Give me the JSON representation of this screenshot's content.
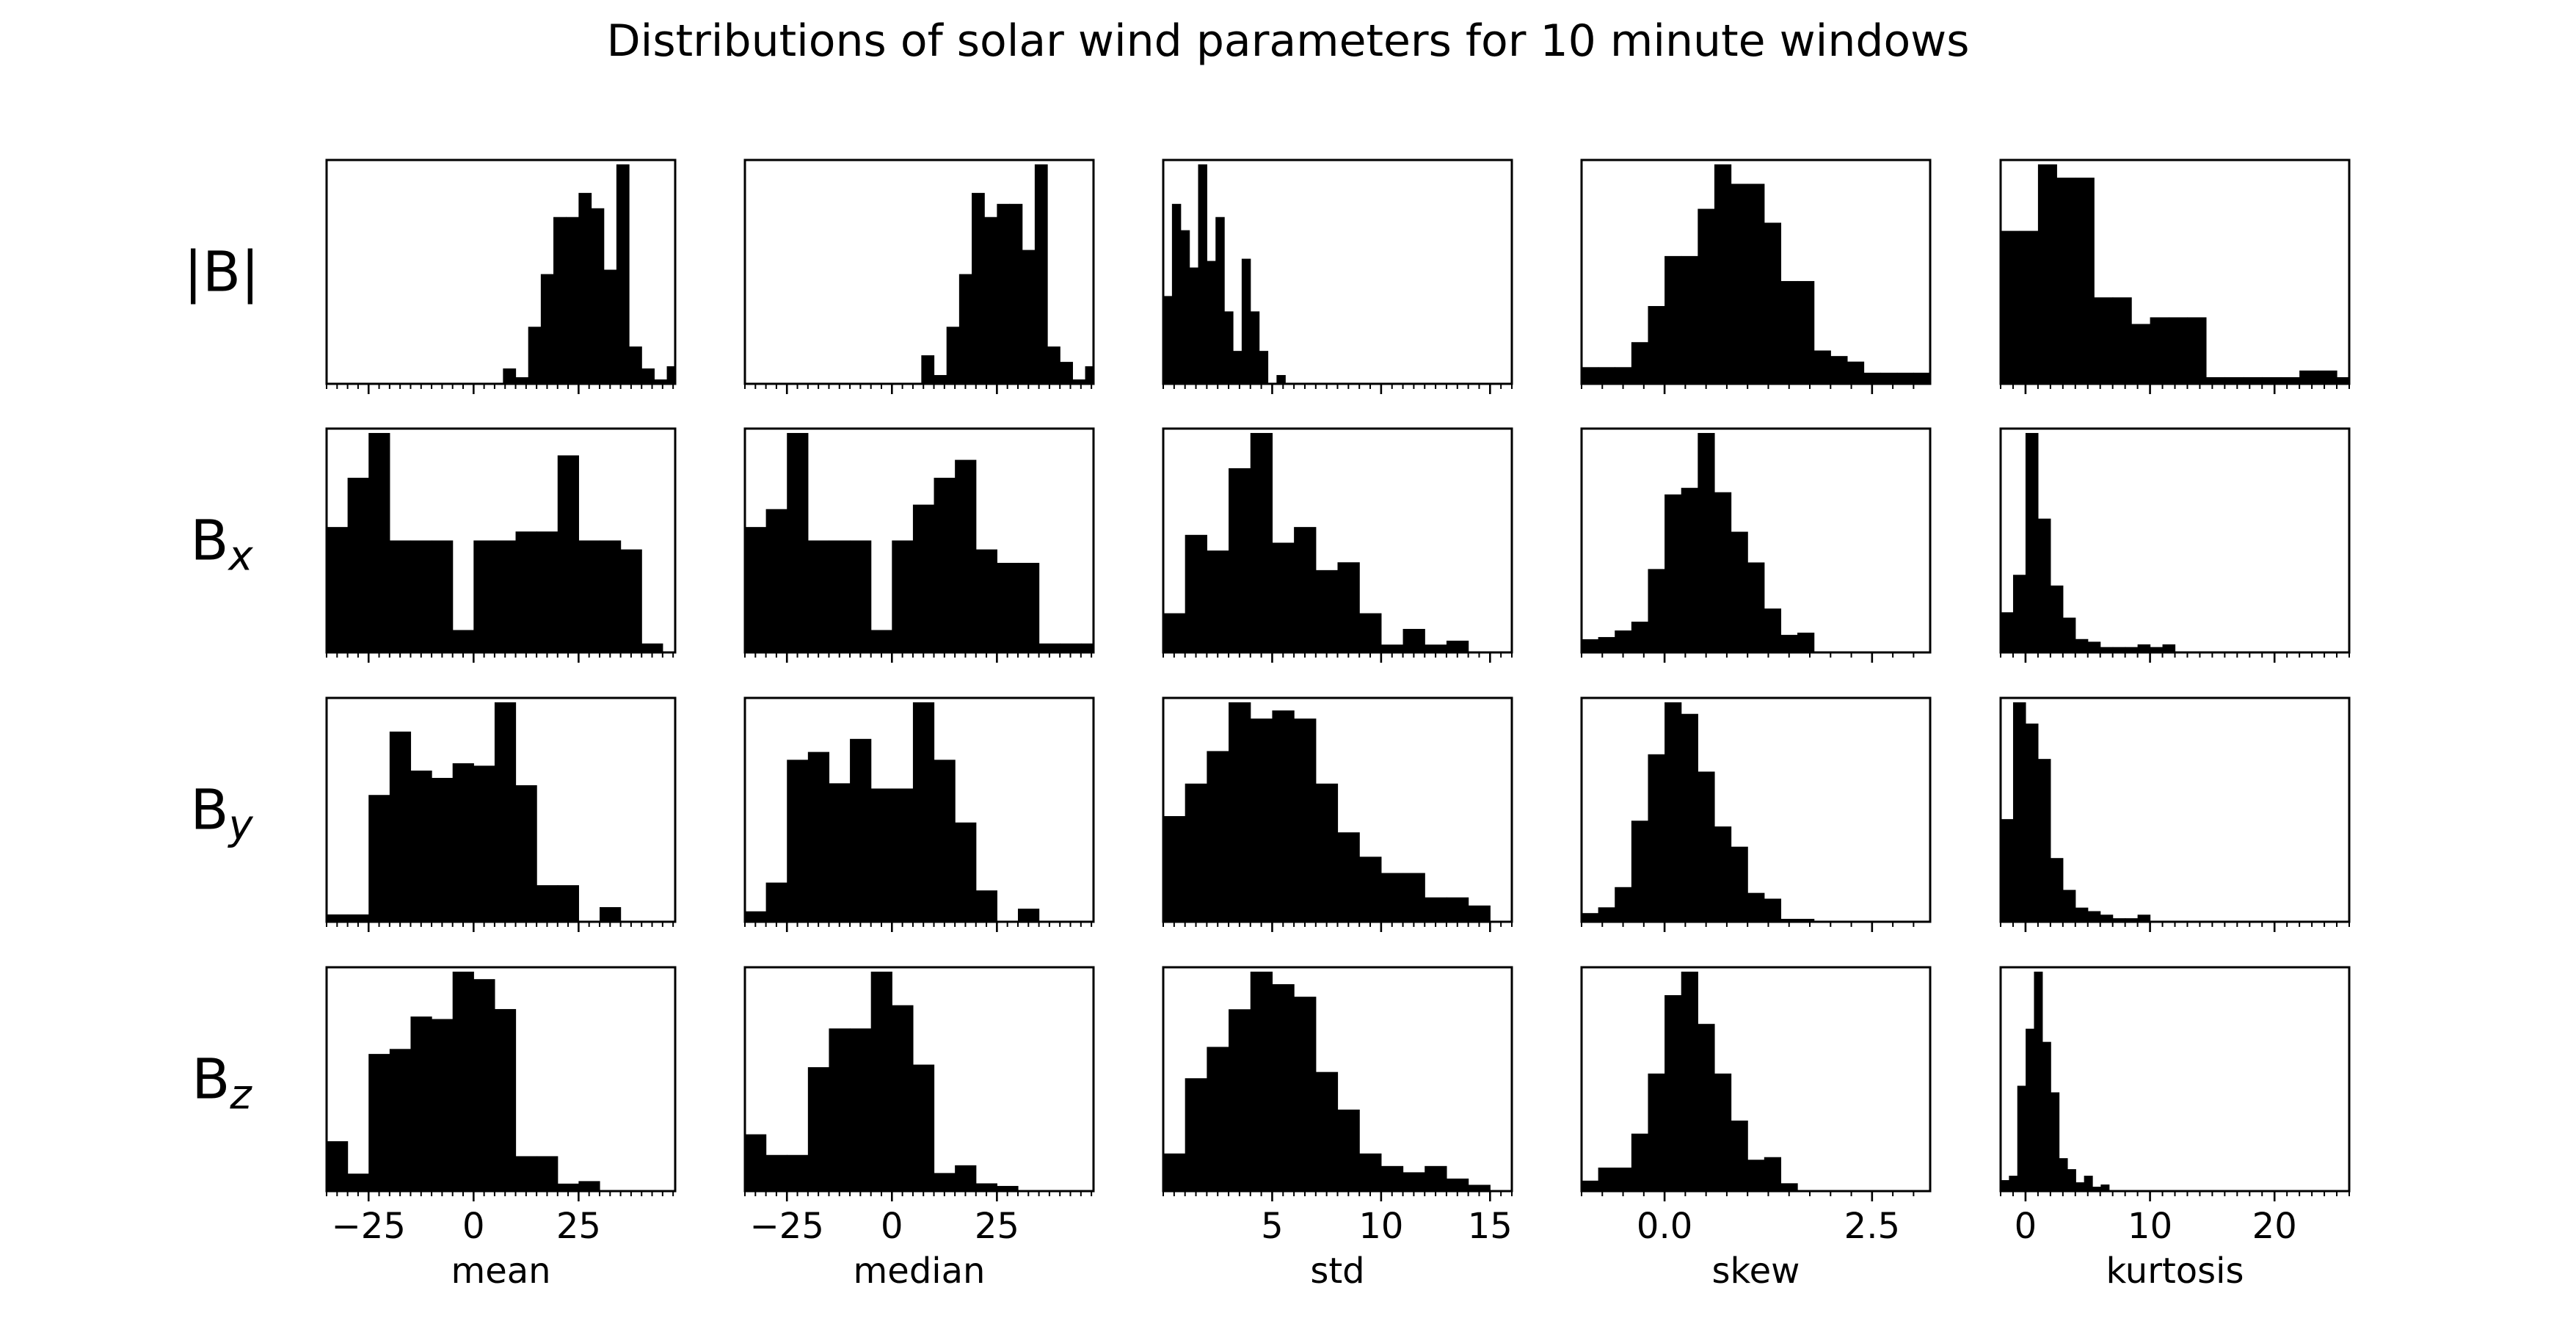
{
  "title": "Distributions of solar wind parameters for 10 minute windows",
  "rows": [
    {
      "id": "bmag",
      "label": "|B|",
      "sub": ""
    },
    {
      "id": "bx",
      "label": "B",
      "sub": "x"
    },
    {
      "id": "by",
      "label": "B",
      "sub": "y"
    },
    {
      "id": "bz",
      "label": "B",
      "sub": "z"
    }
  ],
  "columns": [
    {
      "id": "mean",
      "xlabel": "mean",
      "xlim": [
        -35,
        48
      ],
      "ticks": [
        {
          "v": -25,
          "label": "−25"
        },
        {
          "v": 0,
          "label": "0"
        },
        {
          "v": 25,
          "label": "25"
        }
      ],
      "minor_step": 2.5
    },
    {
      "id": "median",
      "xlabel": "median",
      "xlim": [
        -35,
        48
      ],
      "ticks": [
        {
          "v": -25,
          "label": "−25"
        },
        {
          "v": 0,
          "label": "0"
        },
        {
          "v": 25,
          "label": "25"
        }
      ],
      "minor_step": 2.5
    },
    {
      "id": "std",
      "xlabel": "std",
      "xlim": [
        0,
        16
      ],
      "ticks": [
        {
          "v": 5,
          "label": "5"
        },
        {
          "v": 10,
          "label": "10"
        },
        {
          "v": 15,
          "label": "15"
        }
      ],
      "minor_step": 0.5
    },
    {
      "id": "skew",
      "xlabel": "skew",
      "xlim": [
        -1,
        3.2
      ],
      "ticks": [
        {
          "v": 0,
          "label": "0.0"
        },
        {
          "v": 2.5,
          "label": "2.5"
        }
      ],
      "minor_step": 0.25
    },
    {
      "id": "kurtosis",
      "xlabel": "kurtosis",
      "xlim": [
        -2,
        26
      ],
      "ticks": [
        {
          "v": 0,
          "label": "0"
        },
        {
          "v": 10,
          "label": "10"
        },
        {
          "v": 20,
          "label": "20"
        }
      ],
      "minor_step": 1
    }
  ],
  "chart_data": {
    "type": "bar",
    "layout": "grid 4 rows x 5 columns of histograms",
    "grid": false,
    "panels": [
      {
        "row": "|B|",
        "col": "mean",
        "bin_start": 7,
        "bin_width": 3,
        "counts": [
          7,
          3,
          26,
          50,
          76,
          76,
          87,
          80,
          52,
          100,
          17,
          7,
          2,
          8
        ]
      },
      {
        "row": "|B|",
        "col": "median",
        "bin_start": 7,
        "bin_width": 3,
        "counts": [
          13,
          4,
          26,
          50,
          87,
          76,
          82,
          82,
          61,
          100,
          17,
          10,
          2,
          8
        ]
      },
      {
        "row": "|B|",
        "col": "std",
        "bin_start": 0,
        "bin_width": 0.4,
        "counts": [
          40,
          82,
          70,
          53,
          100,
          56,
          76,
          33,
          15,
          57,
          33,
          15,
          0,
          4
        ]
      },
      {
        "row": "|B|",
        "col": "skew",
        "bin_start": -1,
        "bin_width": 0.2,
        "counts": [
          6,
          6,
          6,
          15,
          28,
          46,
          46,
          63,
          79,
          72,
          72,
          58,
          37,
          37,
          12,
          10,
          8,
          4,
          4,
          4,
          4
        ]
      },
      {
        "row": "|B|",
        "col": "kurtosis",
        "bin_start": -2,
        "bin_width": 1.5,
        "counts": [
          23,
          23,
          33,
          31,
          31,
          13,
          13,
          9,
          10,
          10,
          10,
          1,
          1,
          1,
          1,
          1,
          2,
          2,
          1,
          1,
          1,
          0,
          0,
          1,
          5,
          5
        ]
      },
      {
        "row": "Bx",
        "col": "mean",
        "bin_start": -35,
        "bin_width": 5,
        "counts": [
          28,
          39,
          49,
          25,
          25,
          25,
          5,
          25,
          25,
          27,
          27,
          44,
          25,
          25,
          23,
          2,
          0,
          2
        ]
      },
      {
        "row": "Bx",
        "col": "median",
        "bin_start": -35,
        "bin_width": 5,
        "counts": [
          28,
          32,
          49,
          25,
          25,
          25,
          5,
          25,
          33,
          39,
          43,
          23,
          20,
          20,
          2,
          2,
          2
        ]
      },
      {
        "row": "Bx",
        "col": "std",
        "bin_start": 0,
        "bin_width": 1,
        "counts": [
          10,
          30,
          26,
          47,
          56,
          28,
          32,
          21,
          23,
          10,
          2,
          6,
          2,
          3,
          0,
          0
        ]
      },
      {
        "row": "Bx",
        "col": "skew",
        "bin_start": -1,
        "bin_width": 0.2,
        "counts": [
          6,
          7,
          10,
          14,
          38,
          72,
          75,
          100,
          73,
          55,
          41,
          20,
          8,
          9,
          0,
          0
        ]
      },
      {
        "row": "Bx",
        "col": "kurtosis",
        "bin_start": -2,
        "bin_width": 1,
        "counts": [
          15,
          29,
          82,
          50,
          25,
          13,
          5,
          4,
          2,
          2,
          2,
          3,
          2,
          3,
          0
        ]
      },
      {
        "row": "By",
        "col": "mean",
        "bin_start": -35,
        "bin_width": 5,
        "counts": [
          3,
          3,
          52,
          78,
          62,
          59,
          65,
          64,
          90,
          56,
          15,
          15,
          0,
          6
        ]
      },
      {
        "row": "By",
        "col": "median",
        "bin_start": -35,
        "bin_width": 5,
        "counts": [
          4,
          15,
          62,
          65,
          53,
          70,
          51,
          51,
          84,
          62,
          38,
          12,
          0,
          5,
          0
        ]
      },
      {
        "row": "By",
        "col": "std",
        "bin_start": 0,
        "bin_width": 1,
        "counts": [
          13,
          17,
          21,
          27,
          25,
          26,
          25,
          17,
          11,
          8,
          6,
          6,
          3,
          3,
          2
        ]
      },
      {
        "row": "By",
        "col": "skew",
        "bin_start": -1,
        "bin_width": 0.2,
        "counts": [
          3,
          5,
          12,
          35,
          58,
          76,
          72,
          52,
          33,
          26,
          10,
          8,
          1,
          1,
          0
        ]
      },
      {
        "row": "By",
        "col": "kurtosis",
        "bin_start": -2,
        "bin_width": 1,
        "counts": [
          29,
          62,
          56,
          46,
          18,
          9,
          4,
          3,
          2,
          1,
          1,
          2,
          0
        ]
      },
      {
        "row": "Bz",
        "col": "mean",
        "bin_start": -35,
        "bin_width": 5,
        "counts": [
          20,
          7,
          55,
          57,
          70,
          69,
          88,
          85,
          73,
          14,
          14,
          3,
          4,
          0
        ]
      },
      {
        "row": "Bz",
        "col": "median",
        "bin_start": -35,
        "bin_width": 5,
        "counts": [
          22,
          14,
          14,
          48,
          63,
          63,
          85,
          72,
          49,
          7,
          10,
          3,
          2,
          0
        ]
      },
      {
        "row": "Bz",
        "col": "std",
        "bin_start": 0,
        "bin_width": 1,
        "counts": [
          6,
          18,
          23,
          29,
          35,
          33,
          31,
          19,
          13,
          6,
          4,
          3,
          4,
          2,
          1
        ]
      },
      {
        "row": "Bz",
        "col": "skew",
        "bin_start": -1,
        "bin_width": 0.2,
        "counts": [
          4,
          9,
          9,
          22,
          45,
          75,
          84,
          64,
          45,
          27,
          12,
          13,
          3,
          0
        ]
      },
      {
        "row": "Bz",
        "col": "kurtosis",
        "bin_start": -2,
        "bin_width": 0.67,
        "counts": [
          5,
          7,
          48,
          74,
          100,
          68,
          45,
          15,
          10,
          4,
          7,
          2,
          3,
          0
        ]
      }
    ]
  }
}
